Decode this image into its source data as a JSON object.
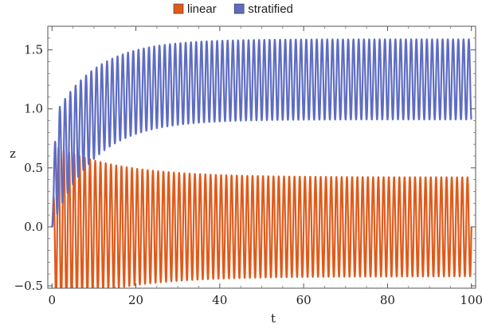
{
  "chart_data": {
    "type": "line",
    "xlabel": "t",
    "ylabel": "z",
    "xlim": [
      -1,
      101
    ],
    "ylim": [
      -0.52,
      1.7
    ],
    "xticks": [
      0,
      20,
      40,
      60,
      80,
      100
    ],
    "xtick_labels": [
      "0",
      "20",
      "40",
      "60",
      "80",
      "100"
    ],
    "yticks": [
      -0.5,
      0,
      0.5,
      1,
      1.5
    ],
    "ytick_labels": [
      "−0.5",
      "0.0",
      "0.5",
      "1.0",
      "1.5"
    ],
    "grid": false,
    "legend_position": "top",
    "series": [
      {
        "name": "linear",
        "color": "#e05a1a",
        "model": "oscillation",
        "start": 0,
        "mean": 0,
        "amp_initial": 0.7,
        "amp_final": 0.42,
        "period": 1.25,
        "relaxation_time": 15
      },
      {
        "name": "stratified",
        "color": "#5e6cc2",
        "model": "oscillation",
        "start": 0,
        "mean_initial": 0.45,
        "mean_final": 1.25,
        "mean_relaxation_time": 10,
        "amp_initial": 0.45,
        "amp_final": 0.34,
        "amp_relaxation_time": 10,
        "period": 1.25
      }
    ]
  }
}
